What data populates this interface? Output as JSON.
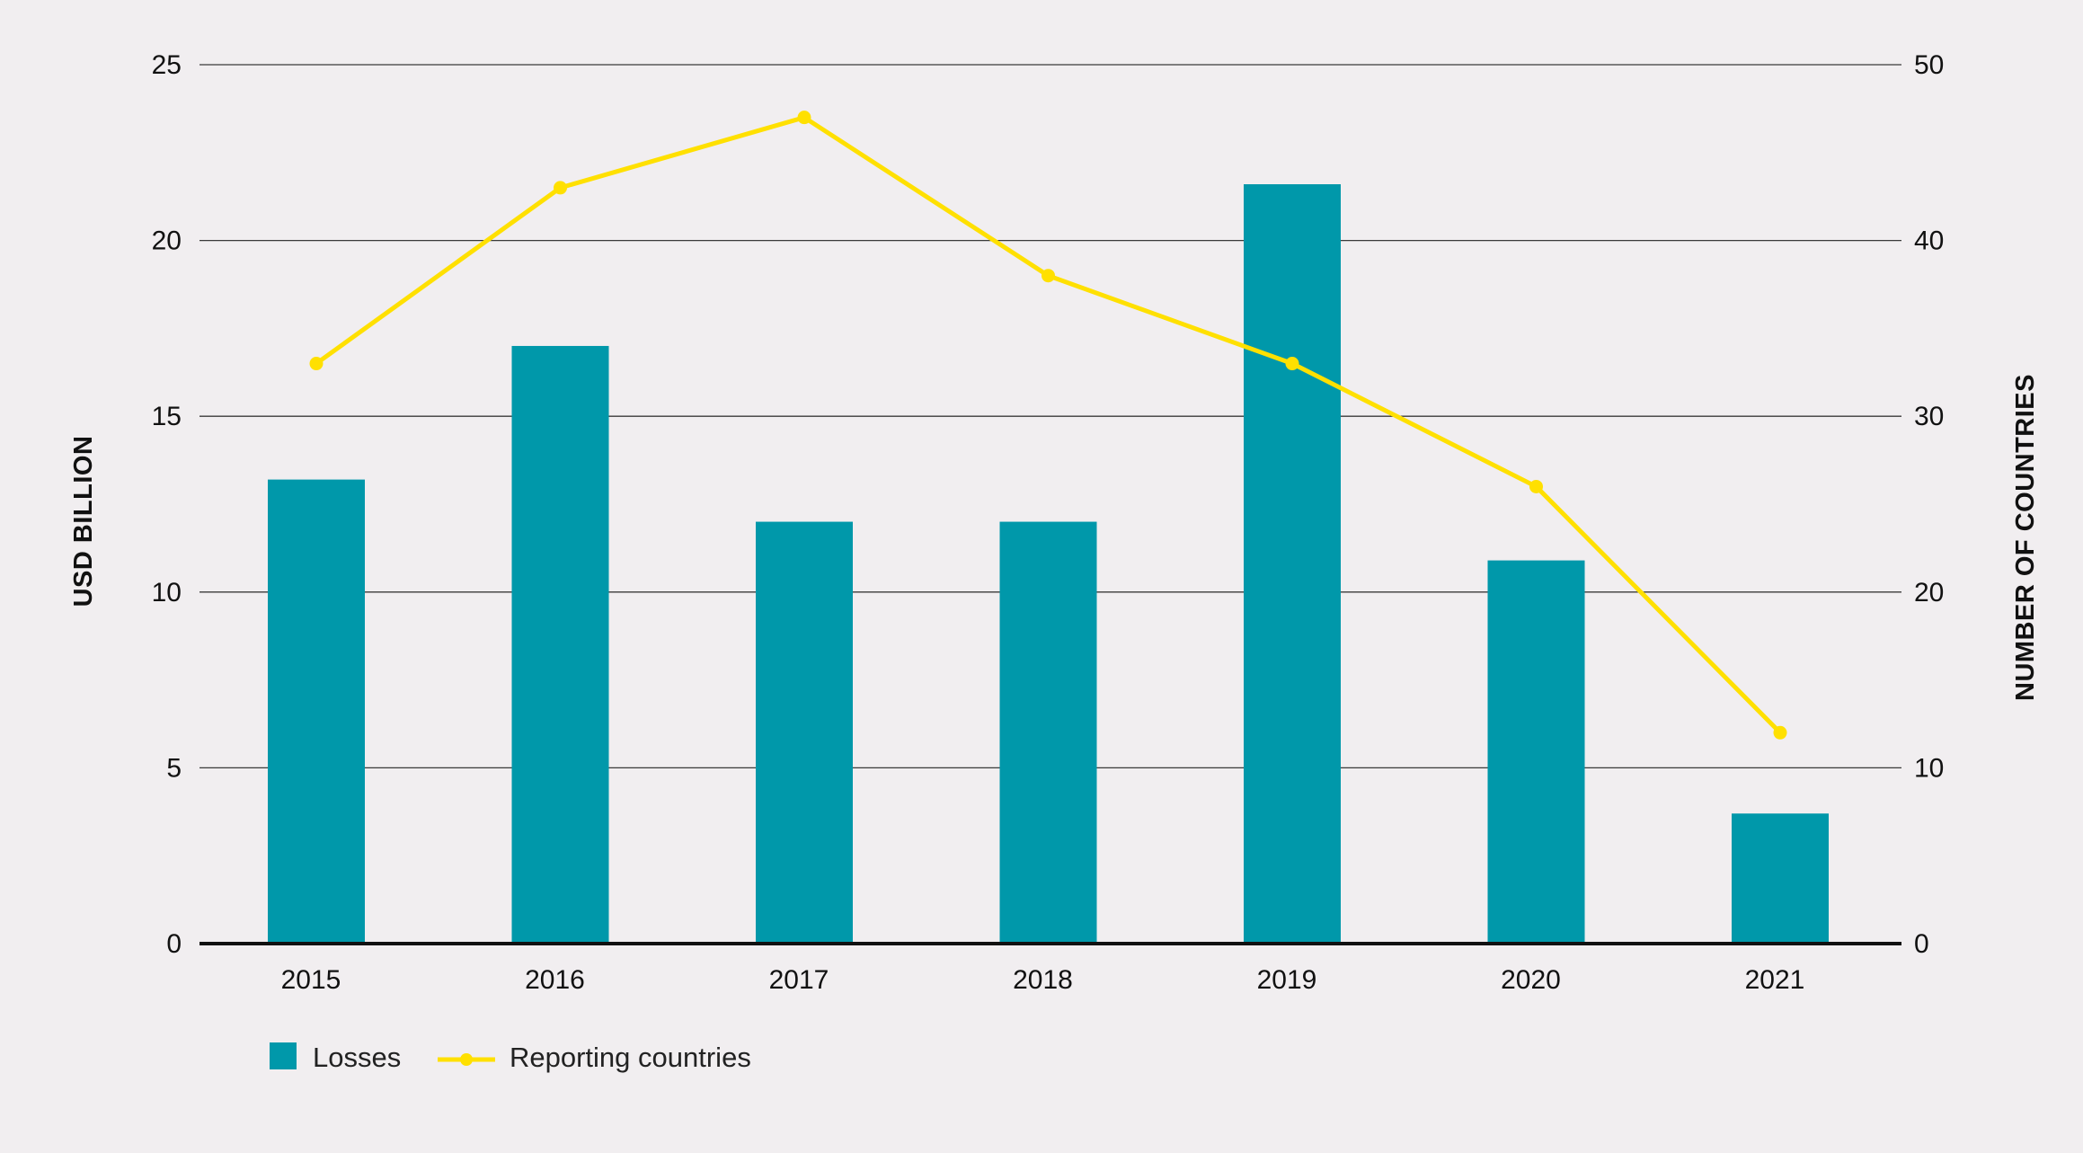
{
  "chart_data": {
    "type": "bar",
    "categories": [
      "2015",
      "2016",
      "2017",
      "2018",
      "2019",
      "2020",
      "2021"
    ],
    "series": [
      {
        "name": "Losses",
        "type": "bar",
        "axis": "left",
        "color": "#0098aa",
        "values": [
          13.2,
          17.0,
          12.0,
          12.0,
          21.6,
          10.9,
          3.7
        ]
      },
      {
        "name": "Reporting countries",
        "type": "line",
        "axis": "right",
        "color": "#ffe000",
        "values": [
          33,
          43,
          47,
          38,
          33,
          26,
          12
        ]
      }
    ],
    "ylabel": "USD BILLION",
    "ylabel_right": "NUMBER OF COUNTRIES",
    "ylim": [
      0,
      25
    ],
    "ylim_right": [
      0,
      50
    ],
    "yticks": [
      "0",
      "5",
      "10",
      "15",
      "20",
      "25"
    ],
    "yticks_right": [
      "0",
      "10",
      "20",
      "30",
      "40",
      "50"
    ],
    "grid": true,
    "legend_position": "bottom-left"
  }
}
